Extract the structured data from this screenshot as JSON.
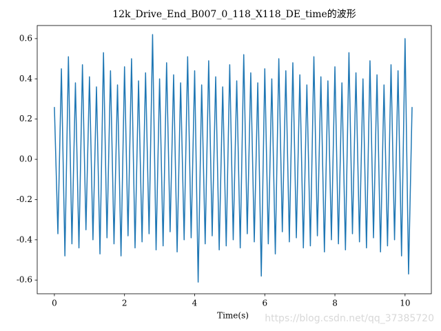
{
  "chart_data": {
    "type": "line",
    "title": "12k_Drive_End_B007_0_118_X118_DE_time的波形",
    "x_label": "Time(s)",
    "color": "#1f77b4",
    "x": [
      0,
      0.1,
      0.2,
      0.3,
      0.4,
      0.5,
      0.6,
      0.7,
      0.8,
      0.9,
      1,
      1.1,
      1.2,
      1.3,
      1.4,
      1.5,
      1.6,
      1.7,
      1.8,
      1.9,
      2,
      2.1,
      2.2,
      2.3,
      2.4,
      2.5,
      2.6,
      2.7,
      2.8,
      2.9,
      3,
      3.1,
      3.2,
      3.3,
      3.4,
      3.5,
      3.6,
      3.7,
      3.8,
      3.9,
      4,
      4.1,
      4.2,
      4.3,
      4.4,
      4.5,
      4.6,
      4.7,
      4.8,
      4.9,
      5,
      5.1,
      5.2,
      5.3,
      5.4,
      5.5,
      5.6,
      5.7,
      5.8,
      5.9,
      6,
      6.1,
      6.2,
      6.3,
      6.4,
      6.5,
      6.6,
      6.7,
      6.8,
      6.9,
      7,
      7.1,
      7.2,
      7.3,
      7.4,
      7.5,
      7.6,
      7.7,
      7.8,
      7.9,
      8,
      8.1,
      8.2,
      8.3,
      8.4,
      8.5,
      8.6,
      8.7,
      8.8,
      8.9,
      9,
      9.1,
      9.2,
      9.3,
      9.4,
      9.5,
      9.6,
      9.7,
      9.8,
      9.9,
      10,
      10.1,
      10.2
    ],
    "values": [
      0.26,
      -0.37,
      0.45,
      -0.48,
      0.51,
      -0.42,
      0.38,
      -0.44,
      0.47,
      -0.35,
      0.41,
      -0.4,
      0.36,
      -0.47,
      0.53,
      -0.39,
      0.44,
      -0.42,
      0.37,
      -0.48,
      0.46,
      -0.38,
      0.5,
      -0.44,
      0.39,
      -0.41,
      0.43,
      -0.37,
      0.62,
      -0.45,
      0.4,
      -0.43,
      0.48,
      -0.36,
      0.42,
      -0.46,
      0.38,
      -0.4,
      0.51,
      -0.39,
      0.44,
      -0.61,
      0.37,
      -0.42,
      0.49,
      -0.38,
      0.41,
      -0.45,
      0.36,
      -0.43,
      0.47,
      -0.4,
      0.39,
      -0.44,
      0.52,
      -0.37,
      0.43,
      -0.41,
      0.38,
      -0.58,
      0.45,
      -0.42,
      0.4,
      -0.47,
      0.5,
      -0.36,
      0.44,
      -0.41,
      0.48,
      -0.39,
      0.42,
      -0.44,
      0.37,
      -0.43,
      0.51,
      -0.38,
      0.41,
      -0.46,
      0.39,
      -0.4,
      0.46,
      -0.42,
      0.38,
      -0.45,
      0.53,
      -0.37,
      0.43,
      -0.41,
      0.4,
      -0.44,
      0.49,
      -0.39,
      0.42,
      -0.46,
      0.37,
      -0.43,
      0.47,
      -0.4,
      0.44,
      -0.48,
      0.6,
      -0.57,
      0.26
    ],
    "xlim": [
      -0.49,
      10.75
    ],
    "ylim": [
      -0.668,
      0.665
    ],
    "xticks": [
      0,
      2,
      4,
      6,
      8,
      10
    ],
    "yticks": [
      -0.6,
      -0.4,
      -0.2,
      {
        "value": 0,
        "label": "0.0"
      },
      0.2,
      0.4,
      0.6
    ]
  },
  "watermark": "https://blog.csdn.net/qq_37385720"
}
